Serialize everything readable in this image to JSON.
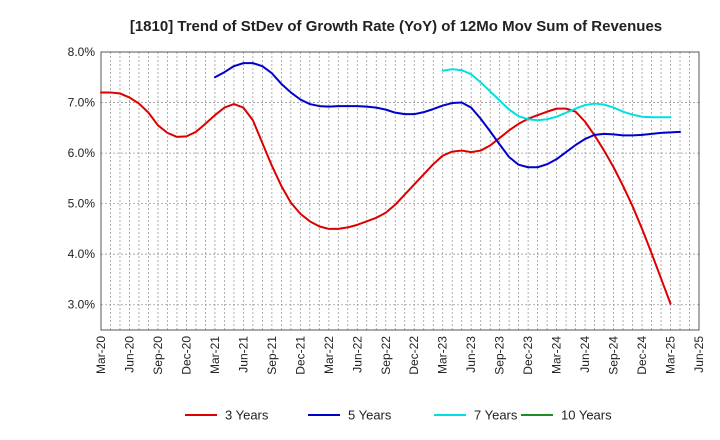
{
  "chart_data": {
    "type": "line",
    "title": "[1810]  Trend of StDev of Growth Rate (YoY) of 12Mo Mov Sum of Revenues",
    "xlabel": "",
    "ylabel": "",
    "ylim": [
      2.5,
      8.0
    ],
    "yticks": [
      "3.0%",
      "4.0%",
      "5.0%",
      "6.0%",
      "7.0%",
      "8.0%"
    ],
    "ytick_values": [
      3.0,
      4.0,
      5.0,
      6.0,
      7.0,
      8.0
    ],
    "x_start": "Mar-20",
    "x_count": 64,
    "xticks": [
      "Mar-20",
      "Jun-20",
      "Sep-20",
      "Dec-20",
      "Mar-21",
      "Jun-21",
      "Sep-21",
      "Dec-21",
      "Mar-22",
      "Jun-22",
      "Sep-22",
      "Dec-22",
      "Mar-23",
      "Jun-23",
      "Sep-23",
      "Dec-23",
      "Mar-24",
      "Jun-24",
      "Sep-24",
      "Dec-24",
      "Mar-25",
      "Jun-25"
    ],
    "grid": true,
    "legend_position": "bottom",
    "series": [
      {
        "name": "3 Years",
        "color": "#dd0000",
        "start_index": 0,
        "values": [
          7.2,
          7.2,
          7.18,
          7.1,
          6.98,
          6.8,
          6.55,
          6.4,
          6.32,
          6.33,
          6.42,
          6.58,
          6.75,
          6.9,
          6.97,
          6.9,
          6.65,
          6.2,
          5.75,
          5.35,
          5.02,
          4.8,
          4.65,
          4.55,
          4.5,
          4.5,
          4.53,
          4.58,
          4.65,
          4.72,
          4.82,
          4.98,
          5.18,
          5.38,
          5.58,
          5.78,
          5.95,
          6.03,
          6.05,
          6.02,
          6.05,
          6.15,
          6.3,
          6.45,
          6.58,
          6.68,
          6.75,
          6.82,
          6.88,
          6.88,
          6.82,
          6.62,
          6.35,
          6.05,
          5.72,
          5.35,
          4.95,
          4.5,
          4.02,
          3.52,
          3.02
        ]
      },
      {
        "name": "5 Years",
        "color": "#0000cc",
        "start_index": 12,
        "values": [
          7.5,
          7.6,
          7.72,
          7.78,
          7.78,
          7.72,
          7.58,
          7.37,
          7.2,
          7.06,
          6.97,
          6.93,
          6.92,
          6.93,
          6.93,
          6.93,
          6.92,
          6.9,
          6.86,
          6.8,
          6.77,
          6.77,
          6.81,
          6.87,
          6.94,
          6.99,
          7.0,
          6.9,
          6.68,
          6.43,
          6.17,
          5.92,
          5.77,
          5.72,
          5.72,
          5.78,
          5.88,
          6.02,
          6.16,
          6.28,
          6.36,
          6.38,
          6.37,
          6.35,
          6.35,
          6.36,
          6.38,
          6.4,
          6.41,
          6.42
        ]
      },
      {
        "name": "7 Years",
        "color": "#00e0e0",
        "start_index": 36,
        "values": [
          7.63,
          7.66,
          7.64,
          7.56,
          7.4,
          7.22,
          7.04,
          6.86,
          6.73,
          6.67,
          6.65,
          6.67,
          6.72,
          6.8,
          6.88,
          6.95,
          6.98,
          6.96,
          6.9,
          6.82,
          6.76,
          6.72,
          6.71,
          6.71,
          6.71
        ]
      },
      {
        "name": "10 Years",
        "color": "#228b22",
        "start_index": 0,
        "values": []
      }
    ]
  }
}
